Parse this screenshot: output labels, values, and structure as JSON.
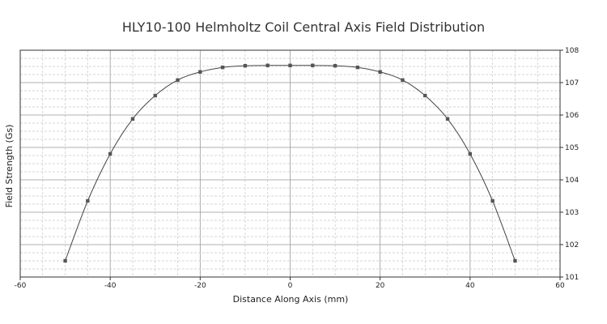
{
  "chart_data": {
    "type": "line",
    "title": "HLY10-100 Helmholtz Coil Central Axis Field Distribution",
    "xlabel": "Distance Along Axis (mm)",
    "ylabel": "Field Strength (Gs)",
    "xlim": [
      -60,
      60
    ],
    "ylim": [
      101,
      108
    ],
    "x_ticks": [
      -60,
      -40,
      -20,
      0,
      20,
      40,
      60
    ],
    "y_ticks": [
      101,
      102,
      103,
      104,
      105,
      106,
      107,
      108
    ],
    "y_axis_side": "right",
    "grid": true,
    "legend": "none",
    "series": [
      {
        "x": [
          -50,
          -45,
          -40,
          -35,
          -30,
          -25,
          -20,
          -15,
          -10,
          -5,
          0,
          5,
          10,
          15,
          20,
          25,
          30,
          35,
          40,
          45,
          50
        ],
        "y": [
          101.5,
          103.35,
          104.8,
          105.88,
          106.6,
          107.08,
          107.33,
          107.47,
          107.52,
          107.53,
          107.53,
          107.53,
          107.52,
          107.47,
          107.33,
          107.08,
          106.6,
          105.88,
          104.8,
          103.35,
          101.5
        ]
      }
    ]
  },
  "colors": {
    "line": "#444444",
    "marker": "#555555",
    "grid_major": "#999999",
    "grid_minor": "#c8c8c8",
    "axis": "#333333"
  }
}
